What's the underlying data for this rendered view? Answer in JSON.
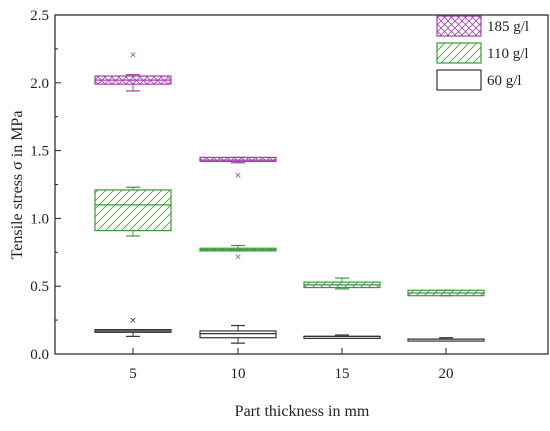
{
  "chart_data": {
    "type": "box",
    "xlabel": "Part thickness in mm",
    "ylabel": "Tensile stress σ in MPa",
    "categories": [
      "5",
      "10",
      "15",
      "20"
    ],
    "ylim": [
      0,
      2.5
    ],
    "yticks": [
      0.0,
      0.5,
      1.0,
      1.5,
      2.0,
      2.5
    ],
    "yticklabels": [
      "0.0",
      "0.5",
      "1.0",
      "1.5",
      "2.0",
      "2.5"
    ],
    "legend_position": "top-right",
    "grid": false,
    "series": [
      {
        "name": "185 g/l",
        "color": "#a040a8",
        "pattern": "crosshatch",
        "boxes": [
          {
            "category": "5",
            "q1": 1.99,
            "median": 2.02,
            "q3": 2.05,
            "whisker_low": 1.94,
            "whisker_high": 2.06,
            "outliers": [
              2.21
            ]
          },
          {
            "category": "10",
            "q1": 1.42,
            "median": 1.43,
            "q3": 1.45,
            "whisker_low": 1.41,
            "whisker_high": 1.45,
            "outliers": [
              1.32
            ]
          }
        ]
      },
      {
        "name": "110 g/l",
        "color": "#3a9a3a",
        "pattern": "diagonal",
        "boxes": [
          {
            "category": "5",
            "q1": 0.91,
            "median": 1.1,
            "q3": 1.21,
            "whisker_low": 0.87,
            "whisker_high": 1.23,
            "outliers": []
          },
          {
            "category": "10",
            "q1": 0.76,
            "median": 0.77,
            "q3": 0.78,
            "whisker_low": 0.76,
            "whisker_high": 0.8,
            "outliers": [
              0.72
            ]
          },
          {
            "category": "15",
            "q1": 0.49,
            "median": 0.51,
            "q3": 0.53,
            "whisker_low": 0.48,
            "whisker_high": 0.56,
            "outliers": []
          },
          {
            "category": "20",
            "q1": 0.43,
            "median": 0.45,
            "q3": 0.47,
            "whisker_low": 0.43,
            "whisker_high": 0.47,
            "outliers": []
          }
        ]
      },
      {
        "name": "60 g/l",
        "color": "#333333",
        "pattern": "none",
        "boxes": [
          {
            "category": "5",
            "q1": 0.16,
            "median": 0.17,
            "q3": 0.18,
            "whisker_low": 0.13,
            "whisker_high": 0.18,
            "outliers": [
              0.25
            ]
          },
          {
            "category": "10",
            "q1": 0.12,
            "median": 0.15,
            "q3": 0.17,
            "whisker_low": 0.08,
            "whisker_high": 0.21,
            "outliers": []
          },
          {
            "category": "15",
            "q1": 0.12,
            "median": 0.13,
            "q3": 0.13,
            "whisker_low": 0.12,
            "whisker_high": 0.14,
            "outliers": []
          },
          {
            "category": "20",
            "q1": 0.1,
            "median": 0.11,
            "q3": 0.11,
            "whisker_low": 0.1,
            "whisker_high": 0.12,
            "outliers": []
          }
        ]
      }
    ]
  }
}
